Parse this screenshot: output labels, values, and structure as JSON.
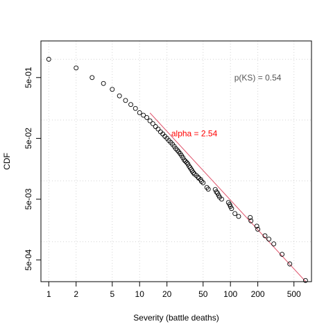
{
  "chart_data": {
    "type": "scatter",
    "xlabel": "Severity (battle deaths)",
    "ylabel": "CDF",
    "x_scale": "log",
    "y_scale": "log",
    "xlim": [
      0.82,
      780
    ],
    "ylim": [
      0.00022,
      2.0
    ],
    "grid": true,
    "x_ticks": [
      1,
      2,
      5,
      10,
      20,
      50,
      100,
      200,
      500
    ],
    "x_tick_labels": [
      "1",
      "2",
      "5",
      "10",
      "20",
      "50",
      "100",
      "200",
      "500"
    ],
    "y_ticks": [
      0.0005,
      0.005,
      0.05,
      0.5
    ],
    "y_tick_labels": [
      "5e-04",
      "5e-03",
      "5e-02",
      "5e-01"
    ],
    "grid_x": [
      1,
      2,
      5,
      10,
      20,
      50,
      100,
      200,
      500
    ],
    "grid_y": [
      0.001,
      0.01,
      0.1,
      1
    ],
    "point_color": "#000000",
    "line_color": "#df536b",
    "annotations": [
      {
        "text": "alpha = 2.54",
        "x": 40,
        "y": 0.06,
        "color": "#ff0000"
      },
      {
        "text": "p(KS) = 0.54",
        "x": 200,
        "y": 0.5,
        "color": "#555555"
      }
    ],
    "fit_line": {
      "x": [
        13,
        720
      ],
      "y": [
        0.131,
        0.000198
      ]
    },
    "points": [
      [
        1,
        1.0
      ],
      [
        2,
        0.72
      ],
      [
        3,
        0.5
      ],
      [
        4,
        0.4
      ],
      [
        5,
        0.32
      ],
      [
        6,
        0.25
      ],
      [
        7,
        0.21
      ],
      [
        8,
        0.18
      ],
      [
        9,
        0.155
      ],
      [
        10,
        0.132
      ],
      [
        11,
        0.12
      ],
      [
        12,
        0.11
      ],
      [
        13,
        0.097
      ],
      [
        14,
        0.087
      ],
      [
        15,
        0.078
      ],
      [
        16,
        0.071
      ],
      [
        17,
        0.064
      ],
      [
        18,
        0.059
      ],
      [
        19,
        0.054
      ],
      [
        20,
        0.05
      ],
      [
        21,
        0.046
      ],
      [
        22,
        0.043
      ],
      [
        23,
        0.04
      ],
      [
        24,
        0.037
      ],
      [
        25,
        0.034
      ],
      [
        26,
        0.032
      ],
      [
        27,
        0.03
      ],
      [
        28,
        0.028
      ],
      [
        29,
        0.026
      ],
      [
        30,
        0.024
      ],
      [
        31,
        0.022
      ],
      [
        32,
        0.021
      ],
      [
        33,
        0.02
      ],
      [
        34,
        0.019
      ],
      [
        35,
        0.0175
      ],
      [
        36,
        0.0165
      ],
      [
        37,
        0.0155
      ],
      [
        38,
        0.0145
      ],
      [
        39,
        0.0137
      ],
      [
        40,
        0.013
      ],
      [
        42,
        0.0123
      ],
      [
        44,
        0.0115
      ],
      [
        45,
        0.011
      ],
      [
        47,
        0.0105
      ],
      [
        48,
        0.0098
      ],
      [
        50,
        0.0093
      ],
      [
        55,
        0.0078
      ],
      [
        57,
        0.0073
      ],
      [
        68,
        0.0072
      ],
      [
        70,
        0.0066
      ],
      [
        72,
        0.0063
      ],
      [
        74,
        0.0058
      ],
      [
        76,
        0.0054
      ],
      [
        80,
        0.005
      ],
      [
        95,
        0.0044
      ],
      [
        98,
        0.0041
      ],
      [
        100,
        0.0038
      ],
      [
        103,
        0.0035
      ],
      [
        112,
        0.0029
      ],
      [
        123,
        0.0026
      ],
      [
        165,
        0.0025
      ],
      [
        168,
        0.0022
      ],
      [
        195,
        0.0018
      ],
      [
        200,
        0.0016
      ],
      [
        240,
        0.00125
      ],
      [
        265,
        0.0011
      ],
      [
        300,
        0.00092
      ],
      [
        370,
        0.00062
      ],
      [
        450,
        0.00043
      ],
      [
        670,
        0.00023
      ]
    ]
  }
}
